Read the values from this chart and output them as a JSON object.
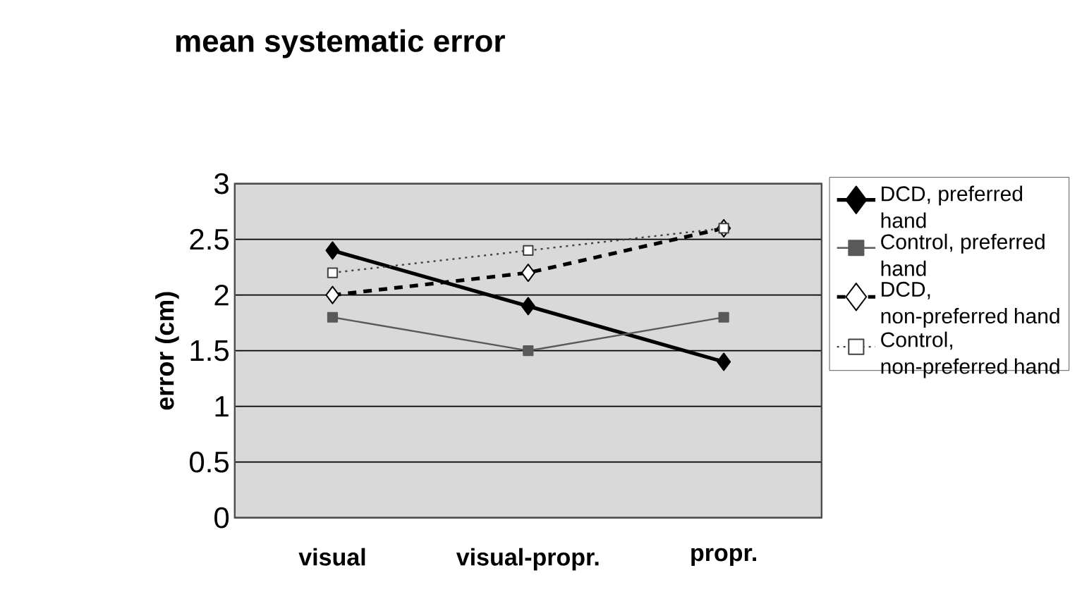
{
  "chart_data": {
    "type": "line",
    "title": "mean systematic error",
    "ylabel": "error (cm)",
    "categories": [
      "visual",
      "visual-propr.",
      "propr."
    ],
    "series": [
      {
        "name": "DCD, preferred hand",
        "color": "#000000",
        "marker": "diamond",
        "line_style": "solid",
        "values": [
          2.4,
          1.9,
          1.4
        ]
      },
      {
        "name": "Control, preferred hand",
        "color": "#595959",
        "marker": "square",
        "line_style": "solid",
        "values": [
          1.8,
          1.5,
          1.8
        ]
      },
      {
        "name": "DCD, non-preferred hand",
        "color": "#000000",
        "marker": "diamond",
        "line_style": "dashed",
        "values": [
          2.0,
          2.2,
          2.6
        ]
      },
      {
        "name": "Control, non-preferred hand",
        "color": "#404040",
        "marker": "square",
        "line_style": "dotted",
        "values": [
          2.2,
          2.4,
          2.6
        ]
      }
    ],
    "ylim": [
      0,
      3
    ],
    "yticks": [
      0,
      0.5,
      1,
      1.5,
      2,
      2.5,
      3
    ],
    "grid": "y",
    "legend": "right"
  }
}
